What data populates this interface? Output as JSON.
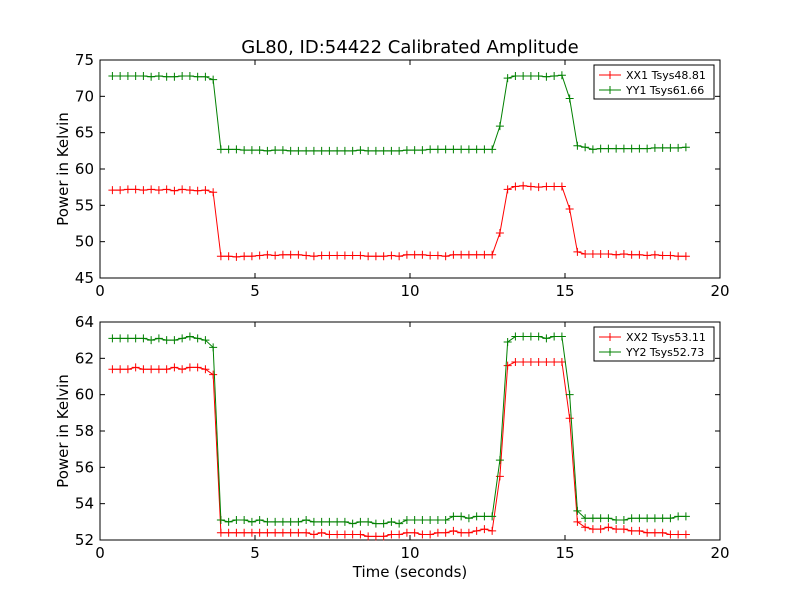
{
  "figure_title": "GL80, ID:54422 Calibrated Amplitude",
  "chart_data": [
    {
      "type": "line",
      "title": "GL80, ID:54422 Calibrated Amplitude",
      "xlabel": "",
      "ylabel": "Power in Kelvin",
      "xlim": [
        0,
        20
      ],
      "ylim": [
        45,
        75
      ],
      "xticks": [
        0,
        5,
        10,
        15,
        20
      ],
      "yticks": [
        45,
        50,
        55,
        60,
        65,
        70,
        75
      ],
      "grid": false,
      "legend_position": "top-right",
      "marker": "+",
      "x": [
        0.4,
        0.65,
        0.9,
        1.15,
        1.4,
        1.65,
        1.9,
        2.15,
        2.4,
        2.65,
        2.9,
        3.15,
        3.4,
        3.65,
        3.9,
        4.15,
        4.4,
        4.65,
        4.9,
        5.15,
        5.4,
        5.65,
        5.9,
        6.15,
        6.4,
        6.65,
        6.9,
        7.15,
        7.4,
        7.65,
        7.9,
        8.15,
        8.4,
        8.65,
        8.9,
        9.15,
        9.4,
        9.65,
        9.9,
        10.15,
        10.4,
        10.65,
        10.9,
        11.15,
        11.4,
        11.65,
        11.9,
        12.15,
        12.4,
        12.65,
        12.9,
        13.15,
        13.4,
        13.65,
        13.9,
        14.15,
        14.4,
        14.65,
        14.9,
        15.15,
        15.4,
        15.65,
        15.9,
        16.15,
        16.4,
        16.65,
        16.9,
        17.15,
        17.4,
        17.65,
        17.9,
        18.15,
        18.4,
        18.65,
        18.9
      ],
      "series": [
        {
          "name": "XX1 Tsys48.81",
          "color": "#ff0000",
          "values": [
            57.1,
            57.1,
            57.2,
            57.2,
            57.1,
            57.2,
            57.1,
            57.2,
            57.0,
            57.2,
            57.1,
            57.0,
            57.1,
            56.8,
            48.0,
            48.0,
            47.9,
            48.0,
            48.0,
            48.1,
            48.2,
            48.1,
            48.2,
            48.2,
            48.2,
            48.1,
            48.0,
            48.1,
            48.1,
            48.1,
            48.1,
            48.1,
            48.1,
            48.0,
            48.0,
            48.0,
            48.1,
            48.0,
            48.2,
            48.2,
            48.2,
            48.1,
            48.1,
            48.0,
            48.2,
            48.2,
            48.2,
            48.2,
            48.2,
            48.2,
            51.2,
            57.2,
            57.6,
            57.7,
            57.6,
            57.5,
            57.6,
            57.6,
            57.6,
            54.5,
            48.6,
            48.3,
            48.3,
            48.3,
            48.3,
            48.2,
            48.3,
            48.2,
            48.2,
            48.1,
            48.2,
            48.1,
            48.1,
            48.0,
            48.0
          ]
        },
        {
          "name": "YY1 Tsys61.66",
          "color": "#008000",
          "values": [
            72.8,
            72.8,
            72.8,
            72.8,
            72.8,
            72.7,
            72.8,
            72.7,
            72.7,
            72.8,
            72.8,
            72.7,
            72.7,
            72.3,
            62.7,
            62.7,
            62.7,
            62.6,
            62.6,
            62.6,
            62.5,
            62.6,
            62.6,
            62.5,
            62.5,
            62.5,
            62.5,
            62.5,
            62.5,
            62.5,
            62.5,
            62.5,
            62.6,
            62.5,
            62.5,
            62.5,
            62.5,
            62.5,
            62.6,
            62.6,
            62.6,
            62.7,
            62.7,
            62.7,
            62.7,
            62.7,
            62.7,
            62.7,
            62.7,
            62.7,
            65.9,
            72.5,
            72.8,
            72.8,
            72.8,
            72.8,
            72.7,
            72.8,
            72.9,
            69.7,
            63.2,
            63.0,
            62.7,
            62.8,
            62.8,
            62.8,
            62.8,
            62.8,
            62.8,
            62.8,
            62.9,
            62.9,
            62.9,
            62.9,
            63.0
          ]
        }
      ]
    },
    {
      "type": "line",
      "title": "",
      "xlabel": "Time (seconds)",
      "ylabel": "Power in Kelvin",
      "xlim": [
        0,
        20
      ],
      "ylim": [
        52,
        64
      ],
      "xticks": [
        0,
        5,
        10,
        15,
        20
      ],
      "yticks": [
        52,
        54,
        56,
        58,
        60,
        62,
        64
      ],
      "grid": false,
      "legend_position": "top-right",
      "marker": "+",
      "x": [
        0.4,
        0.65,
        0.9,
        1.15,
        1.4,
        1.65,
        1.9,
        2.15,
        2.4,
        2.65,
        2.9,
        3.15,
        3.4,
        3.65,
        3.9,
        4.15,
        4.4,
        4.65,
        4.9,
        5.15,
        5.4,
        5.65,
        5.9,
        6.15,
        6.4,
        6.65,
        6.9,
        7.15,
        7.4,
        7.65,
        7.9,
        8.15,
        8.4,
        8.65,
        8.9,
        9.15,
        9.4,
        9.65,
        9.9,
        10.15,
        10.4,
        10.65,
        10.9,
        11.15,
        11.4,
        11.65,
        11.9,
        12.15,
        12.4,
        12.65,
        12.9,
        13.15,
        13.4,
        13.65,
        13.9,
        14.15,
        14.4,
        14.65,
        14.9,
        15.15,
        15.4,
        15.65,
        15.9,
        16.15,
        16.4,
        16.65,
        16.9,
        17.15,
        17.4,
        17.65,
        17.9,
        18.15,
        18.4,
        18.65,
        18.9
      ],
      "series": [
        {
          "name": "XX2 Tsys53.11",
          "color": "#ff0000",
          "values": [
            61.4,
            61.4,
            61.4,
            61.5,
            61.4,
            61.4,
            61.4,
            61.4,
            61.5,
            61.4,
            61.5,
            61.5,
            61.4,
            61.1,
            52.4,
            52.4,
            52.4,
            52.4,
            52.4,
            52.4,
            52.4,
            52.4,
            52.4,
            52.4,
            52.4,
            52.4,
            52.3,
            52.4,
            52.3,
            52.3,
            52.3,
            52.3,
            52.3,
            52.2,
            52.2,
            52.2,
            52.3,
            52.3,
            52.4,
            52.4,
            52.3,
            52.3,
            52.4,
            52.4,
            52.5,
            52.4,
            52.4,
            52.5,
            52.6,
            52.5,
            55.5,
            61.6,
            61.8,
            61.8,
            61.8,
            61.8,
            61.8,
            61.8,
            61.8,
            58.7,
            53.0,
            52.7,
            52.6,
            52.6,
            52.7,
            52.6,
            52.6,
            52.5,
            52.5,
            52.4,
            52.4,
            52.4,
            52.3,
            52.3,
            52.3
          ]
        },
        {
          "name": "YY2 Tsys52.73",
          "color": "#008000",
          "values": [
            63.1,
            63.1,
            63.1,
            63.1,
            63.1,
            63.0,
            63.1,
            63.0,
            63.0,
            63.1,
            63.2,
            63.1,
            63.0,
            62.6,
            53.1,
            53.0,
            53.1,
            53.1,
            53.0,
            53.1,
            53.0,
            53.0,
            53.0,
            53.0,
            53.0,
            53.1,
            53.0,
            53.0,
            53.0,
            53.0,
            53.0,
            52.9,
            53.0,
            53.0,
            52.9,
            52.9,
            53.0,
            52.9,
            53.1,
            53.1,
            53.1,
            53.1,
            53.1,
            53.1,
            53.3,
            53.3,
            53.2,
            53.3,
            53.3,
            53.3,
            56.4,
            62.9,
            63.2,
            63.2,
            63.2,
            63.2,
            63.1,
            63.2,
            63.2,
            60.0,
            53.6,
            53.2,
            53.2,
            53.2,
            53.2,
            53.1,
            53.1,
            53.2,
            53.2,
            53.2,
            53.2,
            53.2,
            53.2,
            53.3,
            53.3
          ]
        }
      ]
    }
  ]
}
